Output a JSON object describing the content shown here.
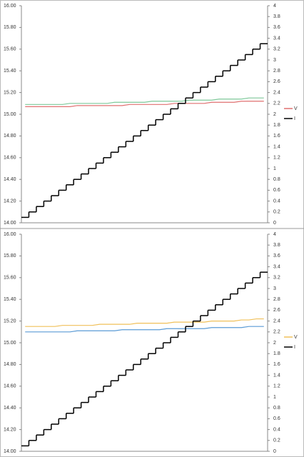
{
  "chart_data": [
    {
      "type": "line",
      "categories": [
        null,
        null,
        null,
        null,
        null,
        null,
        null,
        null,
        null,
        null,
        null,
        null,
        null,
        null,
        null,
        null,
        null,
        null,
        null,
        null,
        null,
        null,
        null,
        null,
        null,
        null,
        null,
        null,
        null,
        null,
        null,
        null,
        null
      ],
      "ylim": [
        14,
        16
      ],
      "yticks": [
        {
          "value": 14,
          "label": "14.00"
        },
        {
          "value": 14.2,
          "label": "14.20"
        },
        {
          "value": 14.4,
          "label": "14.40"
        },
        {
          "value": 14.6,
          "label": "14.60"
        },
        {
          "value": 14.8,
          "label": "14.80"
        },
        {
          "value": 15,
          "label": "15.00"
        },
        {
          "value": 15.2,
          "label": "15.20"
        },
        {
          "value": 15.4,
          "label": "15.40"
        },
        {
          "value": 15.6,
          "label": "15.60"
        },
        {
          "value": 15.8,
          "label": "15.80"
        },
        {
          "value": 16,
          "label": "16.00"
        }
      ],
      "y2lim": [
        0,
        4
      ],
      "y2ticks": [
        0,
        0.2,
        0.4,
        0.6,
        0.8,
        1,
        1.2,
        1.4,
        1.6,
        1.8,
        2,
        2.2,
        2.4,
        2.6,
        2.8,
        3,
        3.2,
        3.4,
        3.6,
        3.8,
        4
      ],
      "legend": "right",
      "series": [
        {
          "color": "#7fc99a",
          "values": [
            15.09,
            15.09,
            15.09,
            15.09,
            15.09,
            15.09,
            15.1,
            15.1,
            15.1,
            15.1,
            15.1,
            15.1,
            15.11,
            15.11,
            15.11,
            15.11,
            15.11,
            15.12,
            15.12,
            15.12,
            15.12,
            15.12,
            15.13,
            15.13,
            15.13,
            15.13,
            15.14,
            15.14,
            15.14,
            15.14,
            15.15,
            15.15,
            15.15
          ]
        },
        {
          "name": "V",
          "color": "#e07070",
          "values": [
            15.07,
            15.07,
            15.07,
            15.07,
            15.07,
            15.07,
            15.07,
            15.08,
            15.08,
            15.08,
            15.08,
            15.08,
            15.08,
            15.08,
            15.09,
            15.09,
            15.09,
            15.09,
            15.09,
            15.09,
            15.1,
            15.1,
            15.1,
            15.1,
            15.1,
            15.11,
            15.11,
            15.11,
            15.11,
            15.12,
            15.12,
            15.12,
            15.12
          ]
        },
        {
          "name": "I",
          "color": "#000000",
          "axis": "y2",
          "step": true,
          "values": [
            0.1,
            0.2,
            0.3,
            0.4,
            0.5,
            0.6,
            0.7,
            0.8,
            0.9,
            1,
            1.1,
            1.2,
            1.3,
            1.4,
            1.5,
            1.6,
            1.7,
            1.8,
            1.9,
            2,
            2.1,
            2.2,
            2.3,
            2.4,
            2.5,
            2.6,
            2.7,
            2.8,
            2.9,
            3,
            3.1,
            3.2,
            3.3
          ]
        }
      ]
    },
    {
      "type": "line",
      "categories": [
        null,
        null,
        null,
        null,
        null,
        null,
        null,
        null,
        null,
        null,
        null,
        null,
        null,
        null,
        null,
        null,
        null,
        null,
        null,
        null,
        null,
        null,
        null,
        null,
        null,
        null,
        null,
        null,
        null,
        null,
        null,
        null,
        null
      ],
      "ylim": [
        14,
        16
      ],
      "yticks": [
        {
          "value": 14,
          "label": "14.00"
        },
        {
          "value": 14.2,
          "label": "14.20"
        },
        {
          "value": 14.4,
          "label": "14.40"
        },
        {
          "value": 14.6,
          "label": "14.60"
        },
        {
          "value": 14.8,
          "label": "14.80"
        },
        {
          "value": 15,
          "label": "15.00"
        },
        {
          "value": 15.2,
          "label": "15.20"
        },
        {
          "value": 15.4,
          "label": "15.40"
        },
        {
          "value": 15.6,
          "label": "15.60"
        },
        {
          "value": 15.8,
          "label": "15.80"
        },
        {
          "value": 16,
          "label": "16.00"
        }
      ],
      "y2lim": [
        0,
        4
      ],
      "y2ticks": [
        0,
        0.2,
        0.4,
        0.6,
        0.8,
        1,
        1.2,
        1.4,
        1.6,
        1.8,
        2,
        2.2,
        2.4,
        2.6,
        2.8,
        3,
        3.2,
        3.4,
        3.6,
        3.8,
        4
      ],
      "legend": "right",
      "series": [
        {
          "name": "V",
          "color": "#f0c05a",
          "values": [
            15.15,
            15.15,
            15.15,
            15.15,
            15.15,
            15.16,
            15.16,
            15.16,
            15.16,
            15.16,
            15.17,
            15.17,
            15.17,
            15.17,
            15.17,
            15.18,
            15.18,
            15.18,
            15.18,
            15.18,
            15.19,
            15.19,
            15.19,
            15.19,
            15.19,
            15.2,
            15.2,
            15.2,
            15.2,
            15.21,
            15.21,
            15.22,
            15.22
          ]
        },
        {
          "color": "#5b9bd5",
          "values": [
            15.1,
            15.1,
            15.1,
            15.1,
            15.1,
            15.1,
            15.1,
            15.11,
            15.11,
            15.11,
            15.11,
            15.11,
            15.11,
            15.12,
            15.12,
            15.12,
            15.12,
            15.12,
            15.12,
            15.13,
            15.13,
            15.13,
            15.13,
            15.13,
            15.13,
            15.14,
            15.14,
            15.14,
            15.14,
            15.14,
            15.15,
            15.15,
            15.15
          ]
        },
        {
          "name": "I",
          "color": "#000000",
          "axis": "y2",
          "step": true,
          "values": [
            0.1,
            0.2,
            0.3,
            0.4,
            0.5,
            0.6,
            0.7,
            0.8,
            0.9,
            1,
            1.1,
            1.2,
            1.3,
            1.4,
            1.5,
            1.6,
            1.7,
            1.8,
            1.9,
            2,
            2.1,
            2.2,
            2.3,
            2.4,
            2.5,
            2.6,
            2.7,
            2.8,
            2.9,
            3,
            3.1,
            3.2,
            3.3
          ]
        }
      ]
    }
  ]
}
